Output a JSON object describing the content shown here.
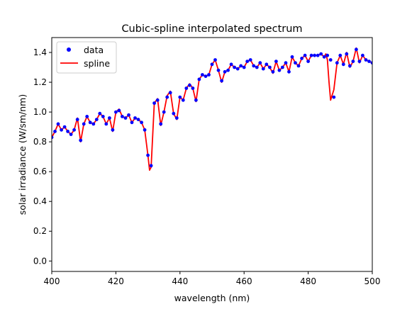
{
  "chart_data": {
    "type": "line",
    "title": "Cubic-spline interpolated spectrum",
    "xlabel": "wavelength (nm)",
    "ylabel": "solar irradiance (W/sm/nm)",
    "xlim": [
      400,
      500
    ],
    "ylim": [
      -0.07,
      1.5
    ],
    "xticks": [
      400,
      420,
      440,
      460,
      480,
      500
    ],
    "yticks": [
      0.0,
      0.2,
      0.4,
      0.6,
      0.8,
      1.0,
      1.2,
      1.4
    ],
    "xtick_labels": [
      "400",
      "420",
      "440",
      "460",
      "480",
      "500"
    ],
    "ytick_labels": [
      "0.0",
      "0.2",
      "0.4",
      "0.6",
      "0.8",
      "1.0",
      "1.2",
      "1.4"
    ],
    "legend": {
      "position": "top-left"
    },
    "colors": {
      "data": "#0000ff",
      "spline": "#ff0000"
    },
    "series": [
      {
        "name": "data",
        "style": "points",
        "x": [
          400,
          401,
          402,
          403,
          404,
          405,
          406,
          407,
          408,
          409,
          410,
          411,
          412,
          413,
          414,
          415,
          416,
          417,
          418,
          419,
          420,
          421,
          422,
          423,
          424,
          425,
          426,
          427,
          428,
          429,
          430,
          431,
          432,
          433,
          434,
          435,
          436,
          437,
          438,
          439,
          440,
          441,
          442,
          443,
          444,
          445,
          446,
          447,
          448,
          449,
          450,
          451,
          452,
          453,
          454,
          455,
          456,
          457,
          458,
          459,
          460,
          461,
          462,
          463,
          464,
          465,
          466,
          467,
          468,
          469,
          470,
          471,
          472,
          473,
          474,
          475,
          476,
          477,
          478,
          479,
          480,
          481,
          482,
          483,
          484,
          485,
          486,
          487,
          488,
          489,
          490,
          491,
          492,
          493,
          494,
          495,
          496,
          497,
          498,
          499,
          500
        ],
        "y": [
          0.83,
          0.87,
          0.92,
          0.88,
          0.9,
          0.87,
          0.85,
          0.88,
          0.95,
          0.81,
          0.92,
          0.97,
          0.93,
          0.92,
          0.95,
          0.99,
          0.97,
          0.92,
          0.96,
          0.88,
          1.0,
          1.01,
          0.97,
          0.96,
          0.98,
          0.93,
          0.96,
          0.95,
          0.93,
          0.88,
          0.71,
          0.64,
          1.06,
          1.08,
          0.92,
          1.0,
          1.1,
          1.13,
          0.99,
          0.96,
          1.1,
          1.08,
          1.16,
          1.18,
          1.16,
          1.08,
          1.22,
          1.25,
          1.24,
          1.25,
          1.32,
          1.35,
          1.28,
          1.21,
          1.27,
          1.28,
          1.32,
          1.3,
          1.29,
          1.31,
          1.3,
          1.34,
          1.35,
          1.31,
          1.3,
          1.33,
          1.29,
          1.32,
          1.3,
          1.27,
          1.34,
          1.28,
          1.3,
          1.33,
          1.27,
          1.37,
          1.33,
          1.31,
          1.36,
          1.38,
          1.34,
          1.38,
          1.38,
          1.38,
          1.39,
          1.37,
          1.38,
          1.35,
          1.1,
          1.33,
          1.38,
          1.32,
          1.39,
          1.31,
          1.34,
          1.42,
          1.34,
          1.38,
          1.35,
          1.34,
          1.33
        ]
      },
      {
        "name": "spline",
        "style": "line",
        "x": [
          400,
          401,
          402,
          403,
          404,
          405,
          406,
          407,
          408,
          409,
          410,
          411,
          412,
          413,
          414,
          415,
          416,
          417,
          418,
          419,
          420,
          421,
          422,
          423,
          424,
          425,
          426,
          427,
          428,
          429,
          430,
          430.5,
          431,
          431.5,
          432,
          433,
          434,
          435,
          436,
          437,
          438,
          439,
          440,
          441,
          442,
          443,
          444,
          445,
          446,
          447,
          448,
          449,
          450,
          451,
          452,
          453,
          454,
          455,
          456,
          457,
          458,
          459,
          460,
          461,
          462,
          463,
          464,
          465,
          466,
          467,
          468,
          469,
          470,
          471,
          472,
          473,
          474,
          475,
          476,
          477,
          478,
          479,
          480,
          481,
          482,
          483,
          484,
          485,
          485.5,
          486,
          486.5,
          487,
          488,
          489,
          490,
          491,
          492,
          493,
          494,
          495,
          496,
          497,
          498,
          499,
          500
        ],
        "y": [
          0.83,
          0.87,
          0.92,
          0.88,
          0.9,
          0.87,
          0.85,
          0.88,
          0.96,
          0.8,
          0.92,
          0.97,
          0.93,
          0.92,
          0.95,
          0.99,
          0.97,
          0.92,
          0.96,
          0.87,
          1.0,
          1.02,
          0.97,
          0.96,
          0.98,
          0.93,
          0.96,
          0.95,
          0.93,
          0.88,
          0.71,
          0.61,
          0.63,
          0.85,
          1.06,
          1.09,
          0.91,
          1.0,
          1.11,
          1.14,
          0.99,
          0.95,
          1.1,
          1.08,
          1.16,
          1.19,
          1.16,
          1.07,
          1.22,
          1.25,
          1.24,
          1.25,
          1.32,
          1.35,
          1.28,
          1.2,
          1.27,
          1.28,
          1.32,
          1.3,
          1.29,
          1.31,
          1.3,
          1.34,
          1.35,
          1.31,
          1.3,
          1.33,
          1.29,
          1.32,
          1.3,
          1.26,
          1.34,
          1.28,
          1.3,
          1.33,
          1.27,
          1.37,
          1.33,
          1.31,
          1.36,
          1.38,
          1.34,
          1.38,
          1.38,
          1.38,
          1.39,
          1.37,
          1.39,
          1.35,
          1.2,
          1.08,
          1.15,
          1.33,
          1.38,
          1.32,
          1.4,
          1.3,
          1.34,
          1.43,
          1.33,
          1.38,
          1.35,
          1.34,
          1.33
        ]
      }
    ]
  }
}
